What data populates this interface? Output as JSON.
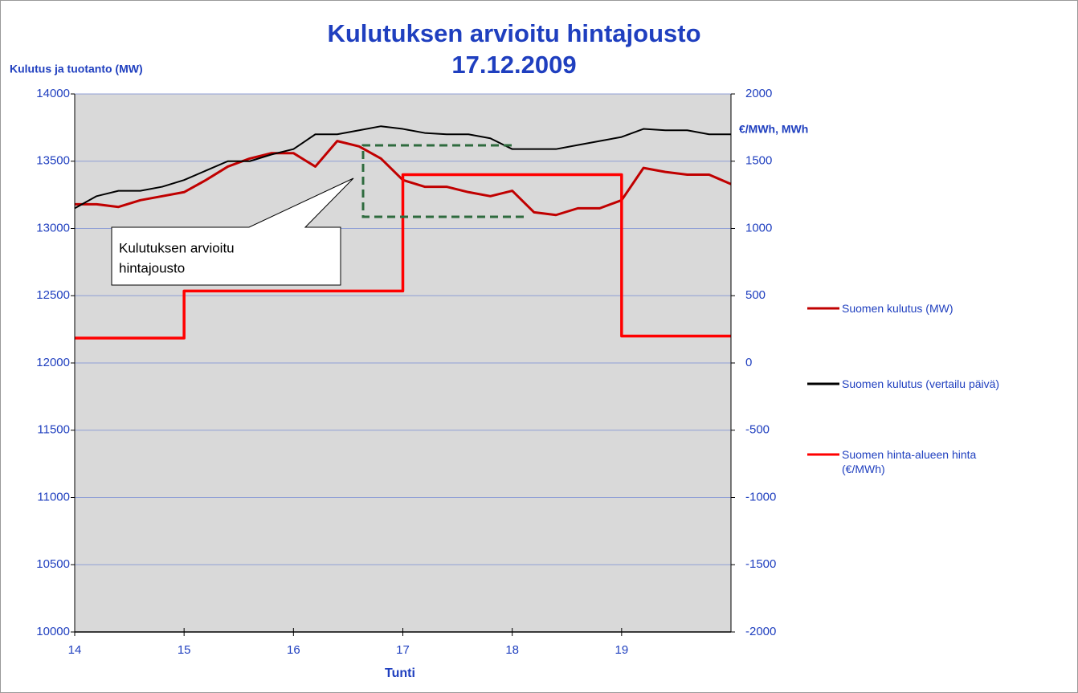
{
  "chart_data": {
    "type": "line",
    "title": "Kulutuksen arvioitu hintajousto",
    "subtitle": "17.12.2009",
    "y_label": "Kulutus ja tuotanto (MW)",
    "y2_label": "€/MWh, MWh",
    "x_label": "Tunti",
    "annotation": [
      "Kulutuksen arvioitu",
      "hintajousto"
    ],
    "xlim": [
      14,
      20
    ],
    "xticks": [
      14,
      15,
      16,
      17,
      18,
      19
    ],
    "ylim": [
      10000,
      14000
    ],
    "yticks": [
      10000,
      10500,
      11000,
      11500,
      12000,
      12500,
      13000,
      13500,
      14000
    ],
    "y2lim": [
      -2000,
      2000
    ],
    "y2ticks": [
      -2000,
      -1500,
      -1000,
      -500,
      0,
      500,
      1000,
      1500,
      2000
    ],
    "grid": true,
    "legend": "right",
    "series": [
      {
        "name": "Suomen kulutus (MW)",
        "color": "#c00000",
        "axis": "y",
        "x": [
          14,
          14.2,
          14.4,
          14.6,
          14.8,
          15,
          15.2,
          15.4,
          15.6,
          15.8,
          16,
          16.2,
          16.4,
          16.6,
          16.8,
          17,
          17.2,
          17.4,
          17.6,
          17.8,
          18,
          18.2,
          18.4,
          18.6,
          18.8,
          19,
          19.2,
          19.4,
          19.6,
          19.8,
          20
        ],
        "values": [
          13180,
          13180,
          13160,
          13210,
          13240,
          13270,
          13360,
          13460,
          13520,
          13560,
          13560,
          13460,
          13650,
          13610,
          13520,
          13360,
          13310,
          13310,
          13270,
          13240,
          13280,
          13120,
          13100,
          13150,
          13150,
          13210,
          13450,
          13420,
          13400,
          13400,
          13330
        ]
      },
      {
        "name": "Suomen kulutus (vertailu päivä)",
        "color": "#000000",
        "axis": "y",
        "x": [
          14,
          14.2,
          14.4,
          14.6,
          14.8,
          15,
          15.2,
          15.4,
          15.6,
          15.8,
          16,
          16.2,
          16.4,
          16.6,
          16.8,
          17,
          17.2,
          17.4,
          17.6,
          17.8,
          18,
          18.2,
          18.4,
          18.6,
          18.8,
          19,
          19.2,
          19.4,
          19.6,
          19.8,
          20
        ],
        "values": [
          13150,
          13240,
          13280,
          13280,
          13310,
          13360,
          13430,
          13500,
          13500,
          13550,
          13590,
          13700,
          13700,
          13730,
          13760,
          13740,
          13710,
          13700,
          13700,
          13670,
          13590,
          13590,
          13590,
          13620,
          13650,
          13680,
          13740,
          13730,
          13730,
          13700,
          13700
        ]
      },
      {
        "name": "Suomen hinta-alueen hinta (€/MWh)",
        "color": "#ff0000",
        "axis": "y2",
        "x": [
          14,
          15,
          15,
          17,
          17,
          19,
          19,
          20
        ],
        "values": [
          185,
          185,
          535,
          535,
          1400,
          1400,
          200,
          200
        ]
      }
    ]
  }
}
